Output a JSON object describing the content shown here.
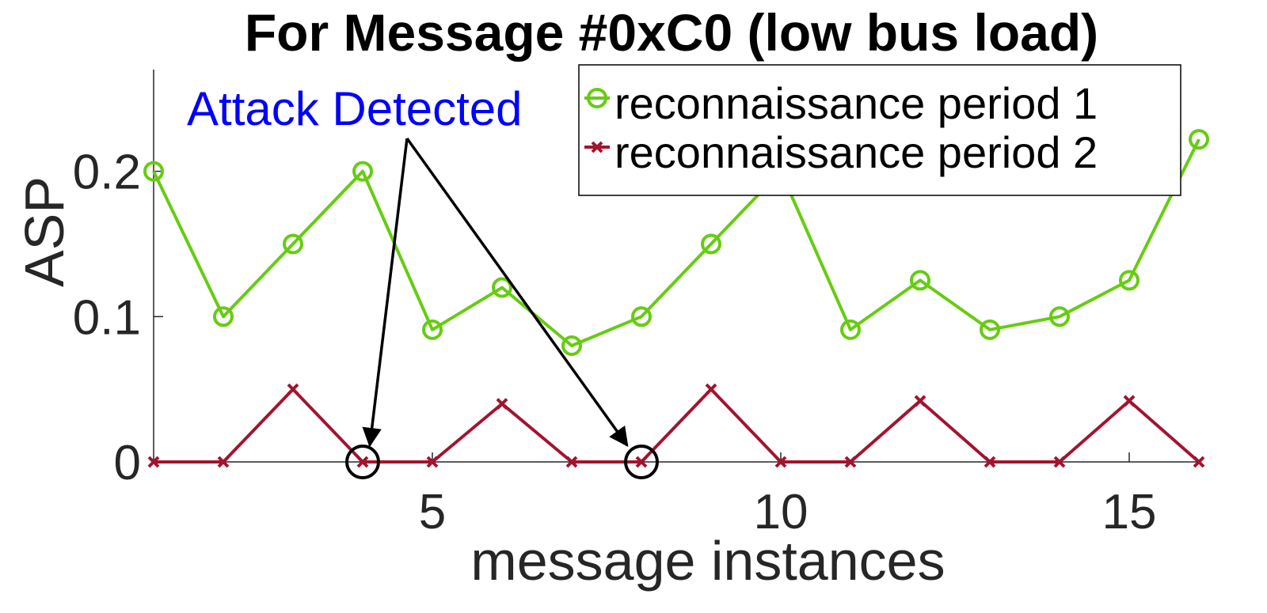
{
  "chart_data": {
    "type": "line",
    "title": "For Message #0xC0 (low bus load)",
    "xlabel": "message instances",
    "ylabel": "ASP",
    "xlim": [
      1,
      16
    ],
    "ylim": [
      0,
      0.27
    ],
    "x": [
      1,
      2,
      3,
      4,
      5,
      6,
      7,
      8,
      9,
      10,
      11,
      12,
      13,
      14,
      15,
      16
    ],
    "xticks": [
      5,
      10,
      15
    ],
    "xtick_labels": [
      "5",
      "10",
      "15"
    ],
    "yticks": [
      0,
      0.1,
      0.2
    ],
    "ytick_labels": [
      "0",
      "0.1",
      "0.2"
    ],
    "grid": false,
    "legend_position": "top-right",
    "series": [
      {
        "name": "reconnaissance period 1",
        "marker": "circle",
        "color": "#66cc11",
        "values": [
          0.2,
          0.1,
          0.15,
          0.2,
          0.091,
          0.12,
          0.08,
          0.1,
          0.15,
          0.2,
          0.091,
          0.125,
          0.091,
          0.1,
          0.125,
          0.222
        ]
      },
      {
        "name": "reconnaissance period 2",
        "marker": "x",
        "color": "#a2142f",
        "values": [
          0,
          0,
          0.05,
          0,
          0,
          0.04,
          0,
          0,
          0.05,
          0,
          0,
          0.042,
          0,
          0,
          0.042,
          0
        ]
      }
    ],
    "annotation": {
      "text": "Attack Detected",
      "color": "#0000ff",
      "targets": [
        {
          "x": 4,
          "y": 0
        },
        {
          "x": 8,
          "y": 0
        }
      ]
    }
  }
}
